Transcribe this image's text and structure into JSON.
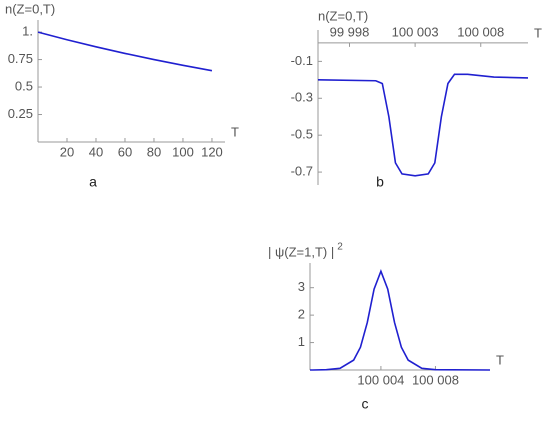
{
  "chart_data": [
    {
      "type": "line",
      "ylabel": "n(Z=0,T)",
      "xlabel": "T",
      "caption": "a",
      "color": "#2020d0",
      "x": [
        0,
        20,
        40,
        60,
        80,
        100,
        120
      ],
      "values": [
        1.0,
        0.93,
        0.866,
        0.806,
        0.75,
        0.698,
        0.649
      ],
      "xlim": [
        0,
        129
      ],
      "ylim": [
        0,
        1.11
      ],
      "xticks": [
        20,
        40,
        60,
        80,
        100,
        120
      ],
      "yticks": [
        0.25,
        0.5,
        0.75,
        {
          "value": 1,
          "label": "1."
        }
      ]
    },
    {
      "type": "line",
      "ylabel": "n(Z=0,T)",
      "xlabel": "T",
      "caption": "b",
      "color": "#2020d0",
      "x": [
        99995.6,
        100000,
        100000.5,
        100001,
        100001.5,
        100002,
        100003,
        100004,
        100004.5,
        100005,
        100005.5,
        100006,
        100007,
        100009,
        100011.6
      ],
      "values": [
        -0.2,
        -0.205,
        -0.22,
        -0.4,
        -0.65,
        -0.71,
        -0.72,
        -0.71,
        -0.65,
        -0.4,
        -0.22,
        -0.17,
        -0.17,
        -0.185,
        -0.19
      ],
      "xlim": [
        99995.6,
        100011.6
      ],
      "ylim": [
        -0.77,
        0.07
      ],
      "xticks": [
        {
          "value": 99998,
          "label": "99 998"
        },
        {
          "value": 100003,
          "label": "100 003"
        },
        {
          "value": 100008,
          "label": "100 008"
        }
      ],
      "yticks": [
        -0.1,
        -0.3,
        -0.5,
        -0.7
      ]
    },
    {
      "type": "line",
      "ylabel": "| ψ(Z=1,T) |",
      "ylabel_sup": "2",
      "xlabel": "T",
      "caption": "c",
      "color": "#2020d0",
      "x": [
        99998.8,
        99999,
        100000,
        100001,
        100002,
        100002.5,
        100003,
        100003.5,
        100004,
        100004.5,
        100005,
        100005.5,
        100006,
        100007,
        100008,
        100012
      ],
      "values": [
        0,
        0,
        0.01,
        0.06,
        0.36,
        0.83,
        1.73,
        2.95,
        3.6,
        2.95,
        1.73,
        0.83,
        0.36,
        0.06,
        0.01,
        0
      ],
      "xlim": [
        99998.8,
        100012
      ],
      "ylim": [
        0,
        3.9
      ],
      "xticks": [
        {
          "value": 100004,
          "label": "100 004"
        },
        {
          "value": 100008,
          "label": "100 008"
        }
      ],
      "yticks": [
        1,
        2,
        3
      ]
    }
  ]
}
